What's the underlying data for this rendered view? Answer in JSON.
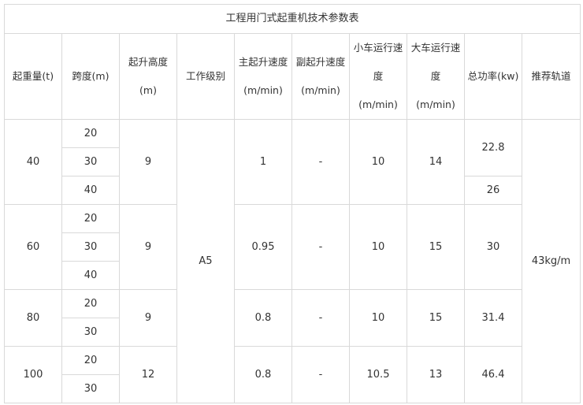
{
  "title": "工程用门式起重机技术参数表",
  "headers": [
    [
      "起重量(t)"
    ],
    [
      "跨度(m)"
    ],
    [
      "起升高度",
      "(m)"
    ],
    [
      "工作级别"
    ],
    [
      "主起升速度",
      "(m/min)"
    ],
    [
      "副起升速度",
      "(m/min)"
    ],
    [
      "小车运行速",
      "度",
      "(m/min)"
    ],
    [
      "大车运行速",
      "度",
      "(m/min)"
    ],
    [
      "总功率(kw)"
    ],
    [
      "推荐轨道"
    ]
  ],
  "work_level": "A5",
  "rail": "43kg/m",
  "groups": [
    {
      "capacity": "40",
      "spans": [
        "20",
        "30",
        "40"
      ],
      "lift_height": "9",
      "main_speed": "1",
      "aux_speed": "-",
      "trolley_speed": "10",
      "crane_speed": "14",
      "power": [
        {
          "value": "22.8",
          "rows": 2
        },
        {
          "value": "26",
          "rows": 1
        }
      ]
    },
    {
      "capacity": "60",
      "spans": [
        "20",
        "30",
        "40"
      ],
      "lift_height": "9",
      "main_speed": "0.95",
      "aux_speed": "-",
      "trolley_speed": "10",
      "crane_speed": "15",
      "power": [
        {
          "value": "30",
          "rows": 3
        }
      ]
    },
    {
      "capacity": "80",
      "spans": [
        "20",
        "30"
      ],
      "lift_height": "9",
      "main_speed": "0.8",
      "aux_speed": "-",
      "trolley_speed": "10",
      "crane_speed": "15",
      "power": [
        {
          "value": "31.4",
          "rows": 2
        }
      ]
    },
    {
      "capacity": "100",
      "spans": [
        "20",
        "30"
      ],
      "lift_height": "12",
      "main_speed": "0.8",
      "aux_speed": "-",
      "trolley_speed": "10.5",
      "crane_speed": "13",
      "power": [
        {
          "value": "46.4",
          "rows": 2
        }
      ]
    }
  ]
}
